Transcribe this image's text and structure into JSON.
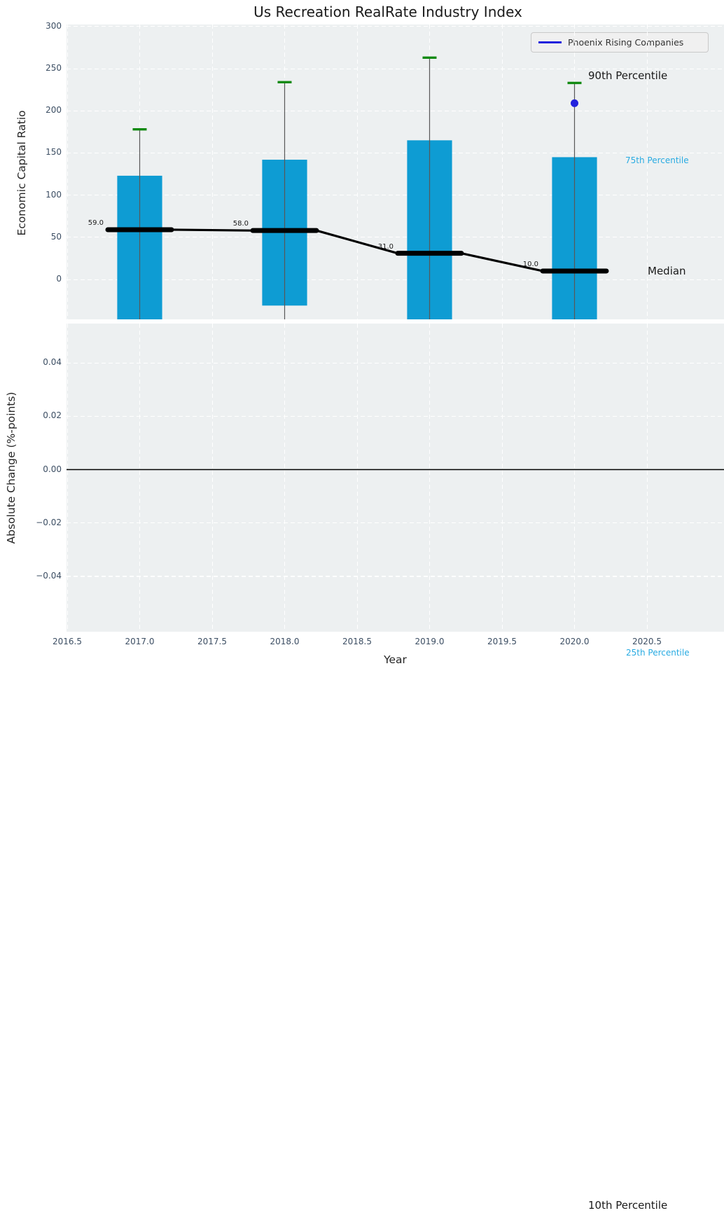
{
  "title": "Us Recreation RealRate Industry Index",
  "legend": {
    "label": "Phoenix Rising Companies"
  },
  "colors": {
    "bar": "#0e9cd3",
    "cyan_text": "#29abe2",
    "green_cap": "#128a12",
    "blue_marker": "#2222dd",
    "plot_bg": "#edf0f1",
    "grid": "#ffffff",
    "tick_text": "#3c4e63",
    "text": "#1a1a1a",
    "whisker": "#585858",
    "median_line": "#000000"
  },
  "xticks": [
    2016.5,
    2017.0,
    2017.5,
    2018.0,
    2018.5,
    2019.0,
    2019.5,
    2020.0,
    2020.5
  ],
  "xtick_labels": [
    "2016.5",
    "2017.0",
    "2017.5",
    "2018.0",
    "2018.5",
    "2019.0",
    "2019.5",
    "2020.0",
    "2020.5"
  ],
  "chart_data": [
    {
      "type": "bar",
      "panel": "economic-capital-ratio",
      "title": "Us Recreation RealRate Industry Index",
      "ylabel": "Economic Capital Ratio",
      "x": [
        2017,
        2018,
        2019,
        2020
      ],
      "bar_width": 0.31,
      "series": [
        {
          "name": "90th Percentile (whisker top)",
          "values": [
            178,
            234,
            263,
            233
          ]
        },
        {
          "name": "75th Percentile (bar top)",
          "values": [
            123,
            142,
            165,
            145
          ]
        },
        {
          "name": "Median",
          "values": [
            59,
            58,
            31,
            10
          ]
        },
        {
          "name": "25th Percentile (bar bottom)",
          "values": [
            null,
            -31,
            null,
            null
          ]
        }
      ],
      "median_labels": [
        "59.0",
        "58.0",
        "31.0",
        "10.0"
      ],
      "phoenix_rising": {
        "x": 2020,
        "y": 209
      },
      "yticks": [
        0,
        50,
        100,
        150,
        200,
        250,
        300
      ],
      "ytick_labels": [
        "0",
        "50",
        "100",
        "150",
        "200",
        "250",
        "300"
      ],
      "ylim": [
        -47,
        302
      ],
      "grid": true,
      "legend_position": "upper right",
      "annotations": [
        {
          "id": "p90",
          "label": "90th Percentile",
          "color_key": "text",
          "size": 15
        },
        {
          "id": "p75",
          "label": "75th Percentile",
          "color_key": "cyan_text",
          "size": 12
        },
        {
          "id": "median",
          "label": "Median",
          "color_key": "text",
          "size": 15
        },
        {
          "id": "p25",
          "label": "25th Percentile",
          "color_key": "cyan_text",
          "size": 12
        },
        {
          "id": "p10",
          "label": "10th Percentile",
          "color_key": "text",
          "size": 15
        }
      ]
    },
    {
      "type": "line",
      "panel": "absolute-change",
      "ylabel": "Absolute Change (%-points)",
      "xlabel": "Year",
      "yticks": [
        0.04,
        0.02,
        0.0,
        -0.02,
        -0.04
      ],
      "ytick_labels": [
        "0.04",
        "0.02",
        "0.00",
        "−0.02",
        "−0.04"
      ],
      "ylim": [
        -0.061,
        0.055
      ],
      "zero_line": 0,
      "grid": true
    }
  ]
}
